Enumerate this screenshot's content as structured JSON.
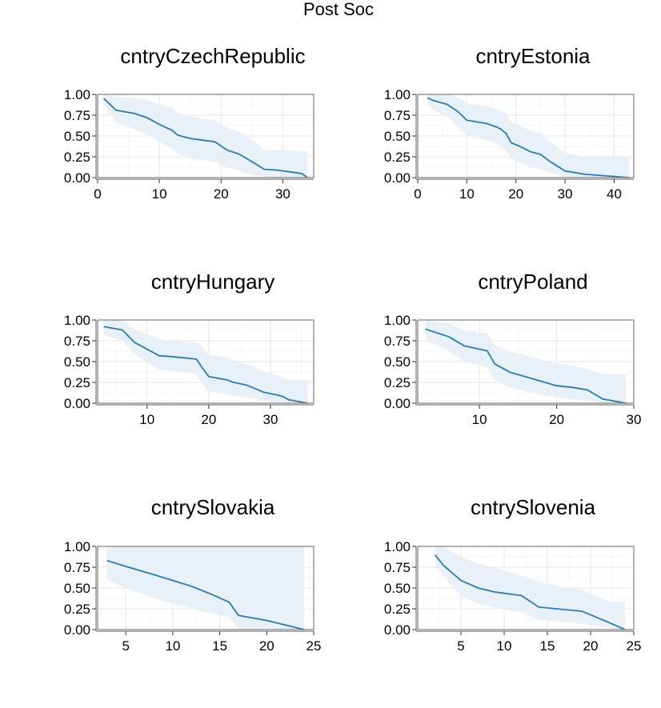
{
  "title": "Post Soc",
  "chart_data": [
    {
      "type": "area",
      "title": "cntryCzechRepublic",
      "xlim": [
        0,
        35
      ],
      "ylim": [
        0,
        1
      ],
      "xticks": [
        0,
        10,
        20,
        30
      ],
      "yticks": [
        0,
        0.25,
        0.5,
        0.75,
        1
      ],
      "ytick_labels": [
        "0.00",
        "0.25",
        "0.50",
        "0.75",
        "1.00"
      ],
      "line_color": "#2b7bba",
      "band_color": "#e4eef7",
      "series": [
        {
          "x": [
            1,
            3,
            6,
            8,
            10,
            12,
            13,
            15,
            17,
            19,
            21,
            23,
            25,
            27,
            29,
            31,
            33,
            34
          ],
          "y": [
            0.95,
            0.81,
            0.77,
            0.72,
            0.64,
            0.57,
            0.51,
            0.47,
            0.45,
            0.43,
            0.33,
            0.28,
            0.19,
            0.1,
            0.09,
            0.07,
            0.05,
            0.0
          ],
          "upper": [
            1.0,
            0.97,
            0.96,
            0.93,
            0.88,
            0.84,
            0.77,
            0.74,
            0.71,
            0.69,
            0.6,
            0.55,
            0.46,
            0.33,
            0.33,
            0.33,
            0.32,
            0.32
          ],
          "lower": [
            0.87,
            0.66,
            0.58,
            0.52,
            0.43,
            0.35,
            0.29,
            0.23,
            0.21,
            0.19,
            0.12,
            0.08,
            0.03,
            0.01,
            0.0,
            0.0,
            0.0,
            0.0
          ]
        }
      ]
    },
    {
      "type": "area",
      "title": "cntryEstonia",
      "xlim": [
        0,
        44
      ],
      "ylim": [
        0,
        1
      ],
      "xticks": [
        0,
        10,
        20,
        30,
        40
      ],
      "yticks": [
        0,
        0.25,
        0.5,
        0.75,
        1
      ],
      "ytick_labels": [
        "0.00",
        "0.25",
        "0.50",
        "0.75",
        "1.00"
      ],
      "line_color": "#2b7bba",
      "band_color": "#e4eef7",
      "series": [
        {
          "x": [
            2,
            3,
            6,
            8,
            9,
            10,
            14,
            16,
            17,
            18,
            19,
            21,
            23,
            25,
            27,
            30,
            34,
            43
          ],
          "y": [
            0.96,
            0.93,
            0.88,
            0.8,
            0.75,
            0.69,
            0.65,
            0.61,
            0.58,
            0.53,
            0.42,
            0.37,
            0.31,
            0.28,
            0.19,
            0.08,
            0.04,
            0.0
          ],
          "upper": [
            1.0,
            1.0,
            1.0,
            0.97,
            0.94,
            0.89,
            0.86,
            0.83,
            0.8,
            0.77,
            0.67,
            0.62,
            0.56,
            0.53,
            0.43,
            0.3,
            0.25,
            0.25
          ],
          "lower": [
            0.88,
            0.82,
            0.73,
            0.62,
            0.56,
            0.5,
            0.45,
            0.41,
            0.37,
            0.32,
            0.23,
            0.18,
            0.12,
            0.1,
            0.05,
            0.01,
            0.0,
            0.0
          ]
        }
      ]
    },
    {
      "type": "area",
      "title": "cntryHungary",
      "xlim": [
        2,
        37
      ],
      "ylim": [
        0,
        1
      ],
      "xticks": [
        10,
        20,
        30
      ],
      "yticks": [
        0,
        0.25,
        0.5,
        0.75,
        1
      ],
      "ytick_labels": [
        "0.00",
        "0.25",
        "0.50",
        "0.75",
        "1.00"
      ],
      "line_color": "#2b7bba",
      "band_color": "#e4eef7",
      "series": [
        {
          "x": [
            3,
            6,
            8,
            10,
            12,
            14,
            18,
            19,
            20,
            23,
            24,
            26,
            27,
            29,
            31,
            32,
            33,
            36
          ],
          "y": [
            0.92,
            0.88,
            0.73,
            0.65,
            0.57,
            0.56,
            0.53,
            0.42,
            0.32,
            0.28,
            0.25,
            0.22,
            0.19,
            0.13,
            0.1,
            0.08,
            0.04,
            0.0
          ],
          "upper": [
            1.0,
            1.0,
            0.89,
            0.83,
            0.77,
            0.75,
            0.73,
            0.67,
            0.58,
            0.55,
            0.52,
            0.48,
            0.45,
            0.38,
            0.34,
            0.31,
            0.28,
            0.28
          ],
          "lower": [
            0.82,
            0.75,
            0.59,
            0.49,
            0.4,
            0.39,
            0.35,
            0.23,
            0.14,
            0.11,
            0.09,
            0.07,
            0.06,
            0.03,
            0.01,
            0.01,
            0.0,
            0.0
          ]
        }
      ]
    },
    {
      "type": "area",
      "title": "cntryPoland",
      "xlim": [
        2,
        30
      ],
      "ylim": [
        0,
        1
      ],
      "xticks": [
        10,
        20,
        30
      ],
      "yticks": [
        0,
        0.25,
        0.5,
        0.75,
        1
      ],
      "ytick_labels": [
        "0.00",
        "0.25",
        "0.50",
        "0.75",
        "1.00"
      ],
      "line_color": "#2b7bba",
      "band_color": "#e4eef7",
      "series": [
        {
          "x": [
            3,
            6,
            8,
            11,
            12,
            14,
            17,
            20,
            22,
            24,
            26,
            29
          ],
          "y": [
            0.89,
            0.8,
            0.69,
            0.63,
            0.47,
            0.37,
            0.29,
            0.21,
            0.19,
            0.16,
            0.05,
            0.0
          ],
          "upper": [
            1.0,
            0.96,
            0.88,
            0.84,
            0.7,
            0.62,
            0.55,
            0.48,
            0.45,
            0.41,
            0.35,
            0.35
          ],
          "lower": [
            0.76,
            0.63,
            0.5,
            0.43,
            0.28,
            0.19,
            0.12,
            0.07,
            0.05,
            0.03,
            0.0,
            0.0
          ]
        }
      ]
    },
    {
      "type": "area",
      "title": "cntrySlovakia",
      "xlim": [
        2,
        25
      ],
      "ylim": [
        0,
        1
      ],
      "xticks": [
        5,
        10,
        15,
        20,
        25
      ],
      "yticks": [
        0,
        0.25,
        0.5,
        0.75,
        1
      ],
      "ytick_labels": [
        "0.00",
        "0.25",
        "0.50",
        "0.75",
        "1.00"
      ],
      "line_color": "#2b7bba",
      "band_color": "#e4eef7",
      "series": [
        {
          "x": [
            3,
            5,
            8,
            10,
            12,
            14,
            16,
            17,
            20,
            24
          ],
          "y": [
            0.83,
            0.76,
            0.66,
            0.59,
            0.52,
            0.43,
            0.33,
            0.17,
            0.11,
            0.0
          ],
          "upper": [
            1.0,
            1.0,
            1.0,
            1.0,
            1.0,
            1.0,
            1.0,
            1.0,
            1.0,
            1.0
          ],
          "lower": [
            0.6,
            0.5,
            0.38,
            0.31,
            0.25,
            0.2,
            0.15,
            0.0,
            0.0,
            0.0
          ]
        }
      ]
    },
    {
      "type": "area",
      "title": "cntrySlovenia",
      "xlim": [
        0,
        25
      ],
      "ylim": [
        0,
        1
      ],
      "xticks": [
        5,
        10,
        15,
        20,
        25
      ],
      "yticks": [
        0,
        0.25,
        0.5,
        0.75,
        1
      ],
      "ytick_labels": [
        "0.00",
        "0.25",
        "0.50",
        "0.75",
        "1.00"
      ],
      "line_color": "#2b7bba",
      "band_color": "#e4eef7",
      "series": [
        {
          "x": [
            2,
            3,
            5,
            7,
            9,
            12,
            14,
            17,
            19,
            22,
            24
          ],
          "y": [
            0.9,
            0.77,
            0.59,
            0.5,
            0.45,
            0.41,
            0.27,
            0.24,
            0.22,
            0.09,
            0.0
          ],
          "upper": [
            1.0,
            0.99,
            0.88,
            0.79,
            0.74,
            0.65,
            0.58,
            0.5,
            0.48,
            0.34,
            0.34
          ],
          "lower": [
            0.78,
            0.64,
            0.41,
            0.31,
            0.26,
            0.21,
            0.12,
            0.09,
            0.07,
            0.02,
            0.0
          ]
        }
      ]
    }
  ]
}
